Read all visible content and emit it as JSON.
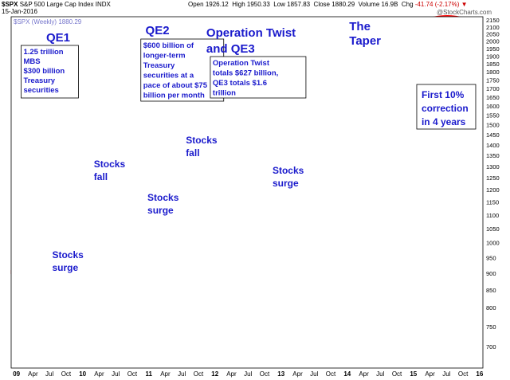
{
  "header": {
    "symbol": "$SPX",
    "name": "S&P 500 Large Cap Index",
    "exchange": "INDX",
    "date": "15-Jan-2016",
    "open_label": "Open",
    "open": "1926.12",
    "high_label": "High",
    "high": "1950.33",
    "low_label": "Low",
    "low": "1857.83",
    "close_label": "Close",
    "close": "1880.29",
    "volume_label": "Volume",
    "volume": "16.9B",
    "chg_label": "Chg",
    "chg": "-41.74 (-2.17%)",
    "watermark": "@StockCharts.com",
    "legend": "$SPX (Weekly) 1880.29",
    "sep": "▼"
  },
  "colors": {
    "qe_band": "#ffff99",
    "twist_band": "#ffff99",
    "taper_band": "#ccffff",
    "annotation_text": "#1a1acc",
    "divider": "#3333cc",
    "arrow": "#1a1acc",
    "up_bar": "#000000",
    "down_bar": "#cc0000",
    "arc": "#ff0000",
    "callout_arrow": "#888888"
  },
  "regions": [
    {
      "label": "QE1",
      "start": 2009.0,
      "end": 2010.25,
      "color": "#ffff99"
    },
    {
      "label": "QE2",
      "start": 2010.9,
      "end": 2011.5,
      "color": "#ffff99"
    },
    {
      "label": "Operation Twist and QE3",
      "start": 2011.75,
      "end": 2014.0,
      "color": "#ffff99"
    },
    {
      "label": "The Taper",
      "start": 2014.0,
      "end": 2014.83,
      "color": "#ccffff"
    }
  ],
  "annotations": {
    "qe1_title": "QE1",
    "qe1_box": [
      "1.25 trillion",
      "MBS",
      "$300 billion",
      "Treasury",
      "securities"
    ],
    "qe2_title": "QE2",
    "qe2_box": [
      "$600 billion of",
      "longer-term",
      "Treasury",
      "securities at a",
      "pace of about $75",
      "billion per month"
    ],
    "twist_title_1": "Operation Twist",
    "twist_title_2": "and QE3",
    "twist_box": [
      "Operation Twist",
      "totals $627 billion,",
      "QE3 totals $1.6",
      "trillion"
    ],
    "taper_title_1": "The",
    "taper_title_2": "Taper",
    "stocks_surge_1": [
      "Stocks",
      "surge"
    ],
    "stocks_fall_1": [
      "Stocks",
      "fall"
    ],
    "stocks_surge_2": [
      "Stocks",
      "surge"
    ],
    "stocks_fall_2": [
      "Stocks",
      "fall"
    ],
    "stocks_surge_3": [
      "Stocks",
      "surge"
    ],
    "correction": [
      "First 10%",
      "correction",
      "in 4 years"
    ]
  },
  "chart_data": {
    "type": "line",
    "title": "$SPX S&P 500 Large Cap Index INDX (Weekly)",
    "xlabel": "",
    "ylabel": "",
    "xlim": [
      2008.92,
      2016.05
    ],
    "ylim": [
      650,
      2175
    ],
    "y_scale": "log",
    "y_ticks": [
      700,
      750,
      800,
      850,
      900,
      950,
      1000,
      1050,
      1100,
      1150,
      1200,
      1250,
      1300,
      1350,
      1400,
      1450,
      1500,
      1550,
      1600,
      1650,
      1700,
      1750,
      1800,
      1850,
      1900,
      1950,
      2000,
      2050,
      2100,
      2150
    ],
    "x_ticks": [
      {
        "label": "09",
        "t": 2009.0,
        "bold": true
      },
      {
        "label": "Apr",
        "t": 2009.25
      },
      {
        "label": "Jul",
        "t": 2009.5
      },
      {
        "label": "Oct",
        "t": 2009.75
      },
      {
        "label": "10",
        "t": 2010.0,
        "bold": true
      },
      {
        "label": "Apr",
        "t": 2010.25
      },
      {
        "label": "Jul",
        "t": 2010.5
      },
      {
        "label": "Oct",
        "t": 2010.75
      },
      {
        "label": "11",
        "t": 2011.0,
        "bold": true
      },
      {
        "label": "Apr",
        "t": 2011.25
      },
      {
        "label": "Jul",
        "t": 2011.5
      },
      {
        "label": "Oct",
        "t": 2011.75
      },
      {
        "label": "12",
        "t": 2012.0,
        "bold": true
      },
      {
        "label": "Apr",
        "t": 2012.25
      },
      {
        "label": "Jul",
        "t": 2012.5
      },
      {
        "label": "Oct",
        "t": 2012.75
      },
      {
        "label": "13",
        "t": 2013.0,
        "bold": true
      },
      {
        "label": "Apr",
        "t": 2013.25
      },
      {
        "label": "Jul",
        "t": 2013.5
      },
      {
        "label": "Oct",
        "t": 2013.75
      },
      {
        "label": "14",
        "t": 2014.0,
        "bold": true
      },
      {
        "label": "Apr",
        "t": 2014.25
      },
      {
        "label": "Jul",
        "t": 2014.5
      },
      {
        "label": "Oct",
        "t": 2014.75
      },
      {
        "label": "15",
        "t": 2015.0,
        "bold": true
      },
      {
        "label": "Apr",
        "t": 2015.25
      },
      {
        "label": "Jul",
        "t": 2015.5
      },
      {
        "label": "Oct",
        "t": 2015.75
      },
      {
        "label": "16",
        "t": 2016.0,
        "bold": true
      }
    ],
    "grid": true,
    "legend": "top-left",
    "series": [
      {
        "name": "$SPX (Weekly) 1880.29",
        "x": [
          2008.92,
          2009.0,
          2009.08,
          2009.17,
          2009.25,
          2009.33,
          2009.42,
          2009.5,
          2009.58,
          2009.67,
          2009.75,
          2009.83,
          2009.92,
          2010.0,
          2010.08,
          2010.17,
          2010.25,
          2010.33,
          2010.42,
          2010.5,
          2010.58,
          2010.67,
          2010.75,
          2010.83,
          2010.92,
          2011.0,
          2011.08,
          2011.17,
          2011.25,
          2011.33,
          2011.42,
          2011.5,
          2011.58,
          2011.67,
          2011.75,
          2011.83,
          2011.92,
          2012.0,
          2012.08,
          2012.17,
          2012.25,
          2012.33,
          2012.42,
          2012.5,
          2012.58,
          2012.67,
          2012.75,
          2012.83,
          2012.92,
          2013.0,
          2013.08,
          2013.17,
          2013.25,
          2013.33,
          2013.42,
          2013.5,
          2013.58,
          2013.67,
          2013.75,
          2013.83,
          2013.92,
          2014.0,
          2014.08,
          2014.17,
          2014.25,
          2014.33,
          2014.42,
          2014.5,
          2014.58,
          2014.67,
          2014.75,
          2014.83,
          2014.92,
          2015.0,
          2015.08,
          2015.17,
          2015.25,
          2015.33,
          2015.42,
          2015.5,
          2015.58,
          2015.67,
          2015.75,
          2015.83,
          2015.92,
          2016.0,
          2016.04
        ],
        "values": [
          900,
          890,
          800,
          720,
          830,
          880,
          920,
          940,
          1000,
          1030,
          1050,
          1090,
          1110,
          1120,
          1080,
          1150,
          1190,
          1160,
          1080,
          1060,
          1100,
          1120,
          1170,
          1200,
          1250,
          1280,
          1320,
          1310,
          1330,
          1340,
          1300,
          1330,
          1290,
          1170,
          1220,
          1250,
          1260,
          1310,
          1350,
          1400,
          1390,
          1360,
          1320,
          1360,
          1400,
          1440,
          1450,
          1390,
          1420,
          1480,
          1510,
          1560,
          1590,
          1650,
          1620,
          1680,
          1650,
          1690,
          1760,
          1770,
          1800,
          1830,
          1780,
          1860,
          1880,
          1890,
          1950,
          1970,
          1930,
          2000,
          1960,
          2020,
          2060,
          2050,
          2080,
          2100,
          2110,
          2090,
          2100,
          2110,
          2080,
          1980,
          1960,
          2080,
          2090,
          2020,
          1880
        ]
      }
    ]
  }
}
